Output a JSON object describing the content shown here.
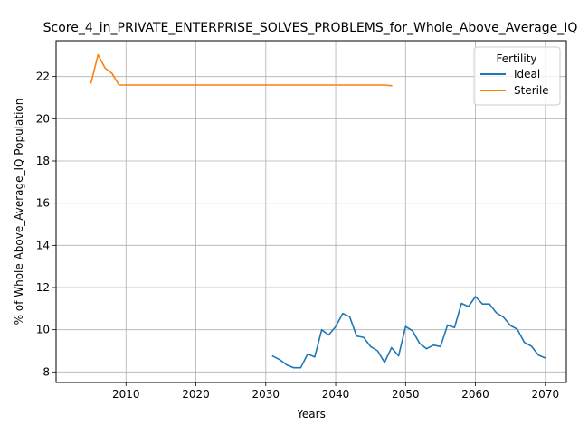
{
  "chart_data": {
    "type": "line",
    "title": "Score_4_in_PRIVATE_ENTERPRISE_SOLVES_PROBLEMS_for_Whole_Above_Average_IQ",
    "xlabel": "Years",
    "ylabel": "% of Whole Above_Average_IQ Population",
    "xlim": [
      2000,
      2073
    ],
    "ylim": [
      7.5,
      23.7
    ],
    "xticks": [
      2010,
      2020,
      2030,
      2040,
      2050,
      2060,
      2070
    ],
    "yticks": [
      8,
      10,
      12,
      14,
      16,
      18,
      20,
      22
    ],
    "grid": true,
    "legend": {
      "title": "Fertility",
      "placement": "top-right"
    },
    "series": [
      {
        "name": "Ideal",
        "color": "#1f77b4",
        "x": [
          2031,
          2032,
          2033,
          2034,
          2035,
          2036,
          2037,
          2038,
          2039,
          2040,
          2041,
          2042,
          2043,
          2044,
          2045,
          2046,
          2047,
          2048,
          2049,
          2050,
          2051,
          2052,
          2053,
          2054,
          2055,
          2056,
          2057,
          2058,
          2059,
          2060,
          2061,
          2062,
          2063,
          2064,
          2065,
          2066,
          2067,
          2068,
          2069,
          2070
        ],
        "y": [
          8.75,
          8.58,
          8.33,
          8.2,
          8.2,
          8.85,
          8.71,
          10.0,
          9.75,
          10.15,
          10.77,
          10.62,
          9.7,
          9.64,
          9.2,
          9.0,
          8.45,
          9.15,
          8.76,
          10.15,
          9.95,
          9.35,
          9.1,
          9.27,
          9.2,
          10.22,
          10.1,
          11.25,
          11.1,
          11.57,
          11.22,
          11.22,
          10.8,
          10.6,
          10.2,
          10.02,
          9.4,
          9.22,
          8.8,
          8.66
        ]
      },
      {
        "name": "Sterile",
        "color": "#ff7f0e",
        "x": [
          2005,
          2006,
          2007,
          2008,
          2009,
          2010,
          2011,
          2012,
          2013,
          2014,
          2015,
          2016,
          2017,
          2018,
          2019,
          2020,
          2021,
          2022,
          2023,
          2024,
          2025,
          2026,
          2027,
          2028,
          2029,
          2030,
          2031,
          2032,
          2033,
          2034,
          2035,
          2036,
          2037,
          2038,
          2039,
          2040,
          2041,
          2042,
          2043,
          2044,
          2045,
          2046,
          2047,
          2048
        ],
        "y": [
          21.7,
          23.03,
          22.4,
          22.15,
          21.6,
          21.6,
          21.6,
          21.6,
          21.6,
          21.6,
          21.6,
          21.6,
          21.6,
          21.6,
          21.6,
          21.6,
          21.6,
          21.6,
          21.6,
          21.6,
          21.6,
          21.6,
          21.6,
          21.6,
          21.6,
          21.6,
          21.6,
          21.6,
          21.6,
          21.6,
          21.6,
          21.6,
          21.6,
          21.6,
          21.6,
          21.6,
          21.6,
          21.6,
          21.6,
          21.6,
          21.6,
          21.6,
          21.6,
          21.57
        ]
      }
    ]
  }
}
